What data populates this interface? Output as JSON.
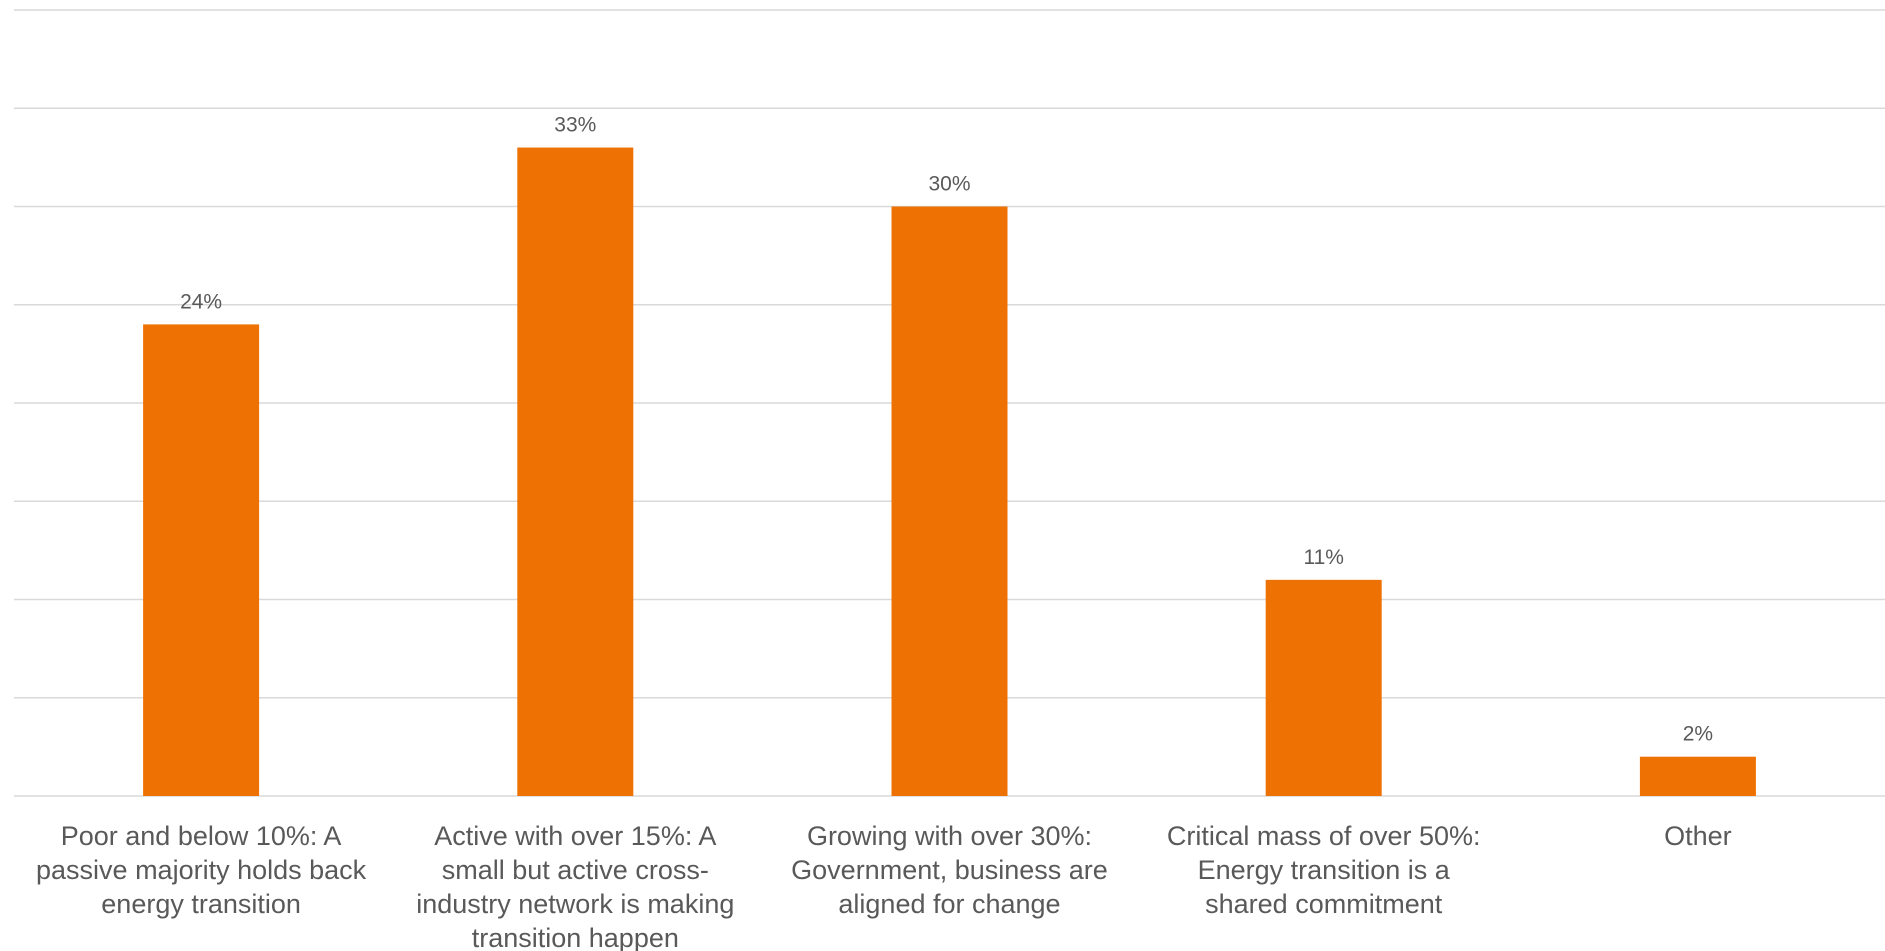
{
  "chart_data": {
    "type": "bar",
    "categories": [
      "Poor and below 10%: A passive majority holds back energy transition",
      "Active with over 15%: A small but active cross-industry network is making transition happen",
      "Growing with over 30%: Government, business are aligned for change",
      "Critical mass of over 50%: Energy transition is a shared commitment",
      "Other"
    ],
    "category_lines": [
      [
        "Poor and below 10%: A",
        "passive majority holds back",
        "energy transition"
      ],
      [
        "Active with over 15%: A",
        "small but active cross-",
        "industry network is making",
        "transition happen"
      ],
      [
        "Growing with over 30%:",
        "Government, business are",
        "aligned for change"
      ],
      [
        "Critical mass of over 50%:",
        "Energy transition is a",
        "shared commitment"
      ],
      [
        "Other"
      ]
    ],
    "values": [
      24,
      33,
      30,
      11,
      2
    ],
    "data_labels": [
      "24%",
      "33%",
      "30%",
      "11%",
      "2%"
    ],
    "unit": "%",
    "ylim": [
      0,
      40
    ],
    "grid_step": 5,
    "grid": true,
    "legend": false,
    "bar_color": "#ee7203"
  }
}
